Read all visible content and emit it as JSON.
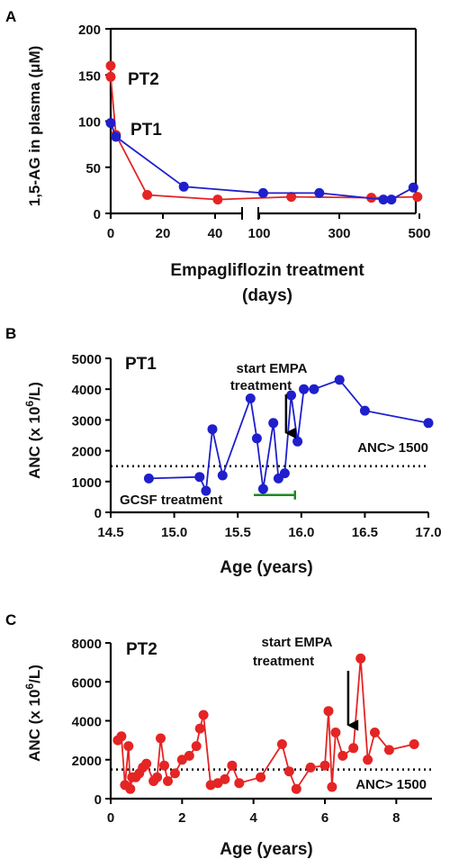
{
  "colors": {
    "PT1": "#1f1fcc",
    "PT2": "#e52424",
    "gcsf": "#1e8a1e",
    "axis": "#000000"
  },
  "chart_data": [
    {
      "panel": "A",
      "type": "line",
      "ylabel": "1,5-AG in plasma (μM)",
      "xlabel": "Empagliflozin treatment",
      "xlabel2": "(days)",
      "ylim": [
        0,
        200
      ],
      "yticks": [
        "0",
        "50",
        "100",
        "150",
        "200"
      ],
      "x_segments": [
        {
          "range": [
            0,
            50
          ],
          "ticks": [
            "0",
            "20",
            "40"
          ]
        },
        {
          "range": [
            100,
            500
          ],
          "ticks": [
            "100",
            "300",
            "500"
          ]
        }
      ],
      "series": [
        {
          "name": "PT2",
          "x": [
            0,
            0,
            2,
            14,
            41,
            180,
            380,
            495
          ],
          "y": [
            160,
            148,
            85,
            20,
            15,
            18,
            17,
            18
          ]
        },
        {
          "name": "PT1",
          "x": [
            0,
            2,
            28,
            110,
            250,
            410,
            430,
            485
          ],
          "y": [
            98,
            83,
            29,
            22,
            22,
            15,
            15,
            28
          ]
        }
      ]
    },
    {
      "panel": "B",
      "type": "line",
      "ylabel": "ANC (x 10",
      "ylabel_sup": "6",
      "ylabel_tail": "/L)",
      "xlabel": "Age (years)",
      "xlim": [
        14.5,
        17.0
      ],
      "ylim": [
        0,
        5000
      ],
      "xticks": [
        "14.5",
        "15.0",
        "15.5",
        "16.0",
        "16.5",
        "17.0"
      ],
      "yticks": [
        "0",
        "1000",
        "2000",
        "3000",
        "4000",
        "5000"
      ],
      "series": [
        {
          "name": "PT1",
          "x": [
            14.8,
            15.2,
            15.25,
            15.3,
            15.38,
            15.6,
            15.65,
            15.7,
            15.78,
            15.82,
            15.87,
            15.92,
            15.97,
            16.02,
            16.1,
            16.3,
            16.5,
            17.0
          ],
          "y": [
            1100,
            1150,
            700,
            2700,
            1200,
            3700,
            2400,
            760,
            2900,
            1100,
            1270,
            3800,
            2300,
            4000,
            4000,
            4300,
            3300,
            2900
          ]
        }
      ],
      "threshold": {
        "value": 1500,
        "label": "ANC> 1500"
      },
      "annotation": {
        "line1": "start EMPA",
        "line2": "treatment",
        "x": 15.88,
        "y": 2400
      },
      "gcsf": {
        "label": "GCSF treatment",
        "x_end": 15.95,
        "y": 300
      }
    },
    {
      "panel": "C",
      "type": "line",
      "ylabel": "ANC (x 10",
      "ylabel_sup": "6",
      "ylabel_tail": "/L)",
      "xlabel": "Age (years)",
      "xlim": [
        0,
        9
      ],
      "ylim": [
        0,
        8000
      ],
      "xticks": [
        "0",
        "2",
        "4",
        "6",
        "8"
      ],
      "yticks": [
        "0",
        "2000",
        "4000",
        "6000",
        "8000"
      ],
      "series": [
        {
          "name": "PT2",
          "x": [
            0.2,
            0.3,
            0.4,
            0.5,
            0.55,
            0.6,
            0.7,
            0.8,
            0.9,
            1.0,
            1.2,
            1.3,
            1.4,
            1.5,
            1.6,
            1.8,
            2.0,
            2.2,
            2.4,
            2.5,
            2.6,
            2.8,
            3.0,
            3.2,
            3.4,
            3.6,
            4.2,
            4.8,
            5.0,
            5.2,
            5.6,
            6.0,
            6.1,
            6.2,
            6.3,
            6.5,
            6.8,
            7.0,
            7.2,
            7.4,
            7.8,
            8.5
          ],
          "y": [
            3000,
            3200,
            700,
            2700,
            500,
            1100,
            1100,
            1300,
            1600,
            1800,
            900,
            1100,
            3100,
            1700,
            900,
            1300,
            2000,
            2200,
            2700,
            3600,
            4300,
            700,
            800,
            1000,
            1700,
            800,
            1100,
            2800,
            1400,
            500,
            1600,
            1700,
            4500,
            600,
            3400,
            2200,
            2600,
            7200,
            2000,
            3400,
            2500,
            2800
          ]
        }
      ],
      "threshold": {
        "value": 1500,
        "label": "ANC> 1500"
      },
      "annotation": {
        "line1": "start EMPA",
        "line2": "treatment",
        "x": 6.3,
        "y": 3400
      }
    }
  ]
}
